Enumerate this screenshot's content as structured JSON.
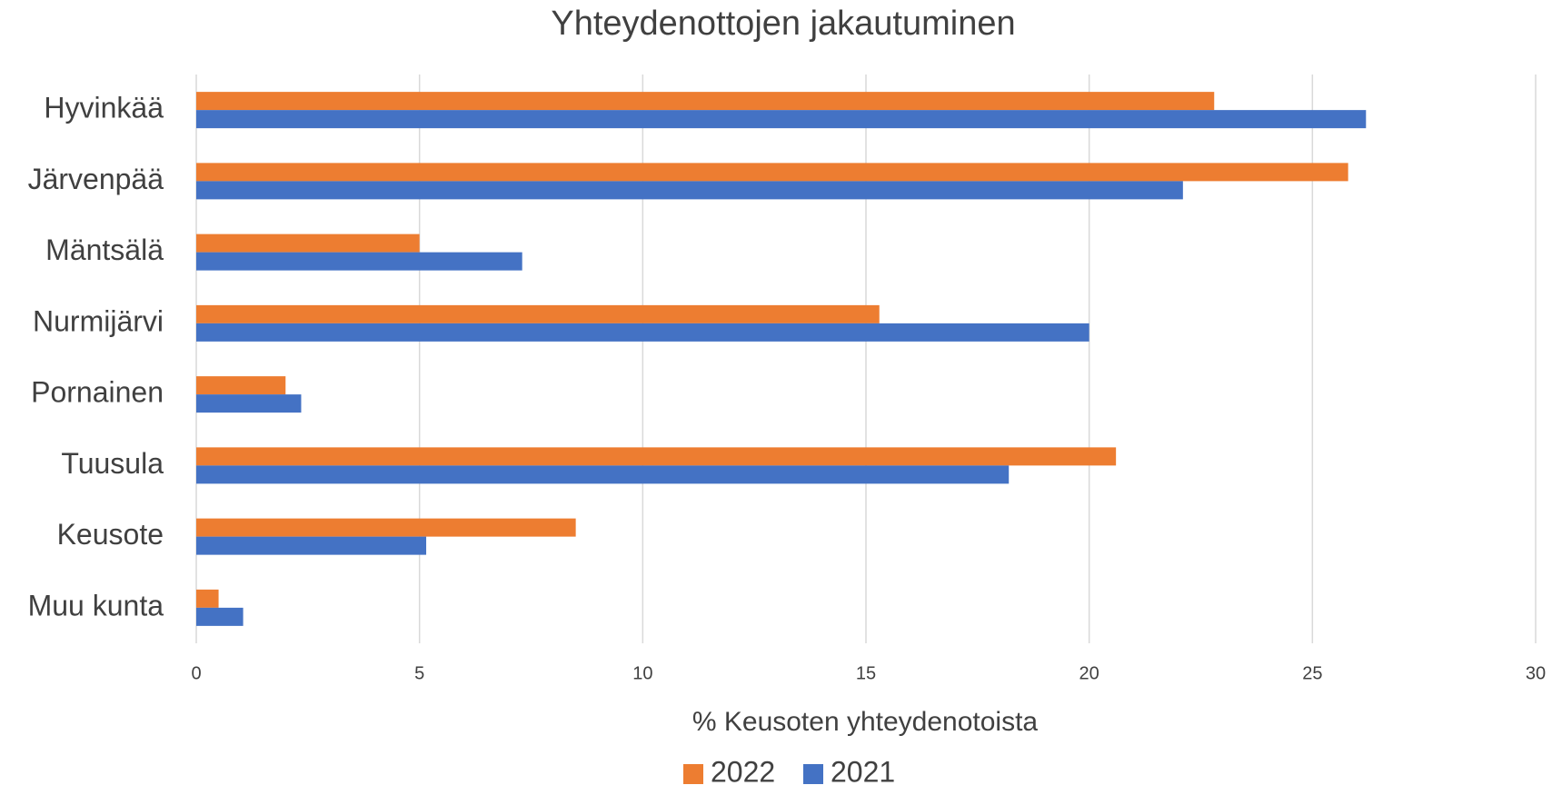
{
  "chart_data": {
    "type": "barh",
    "title": "Yhteydenottojen jakautuminen",
    "x_label": "% Keusoten yhteydenotoista",
    "categories": [
      "Hyvinkää",
      "Järvenpää",
      "Mäntsälä",
      "Nurmijärvi",
      "Pornainen",
      "Tuusula",
      "Keusote",
      "Muu kunta"
    ],
    "series": [
      {
        "name": "2022",
        "color": "#ed7d31",
        "values": [
          22.8,
          25.8,
          5.0,
          15.3,
          2.0,
          20.6,
          8.5,
          0.5
        ]
      },
      {
        "name": "2021",
        "color": "#4472c4",
        "values": [
          26.2,
          22.1,
          7.3,
          20.0,
          2.35,
          18.2,
          5.15,
          1.05
        ]
      }
    ],
    "xlim": [
      0,
      30
    ],
    "xticks": [
      0,
      5,
      10,
      15,
      20,
      25,
      30
    ],
    "grid": true,
    "legend": "bottom"
  }
}
